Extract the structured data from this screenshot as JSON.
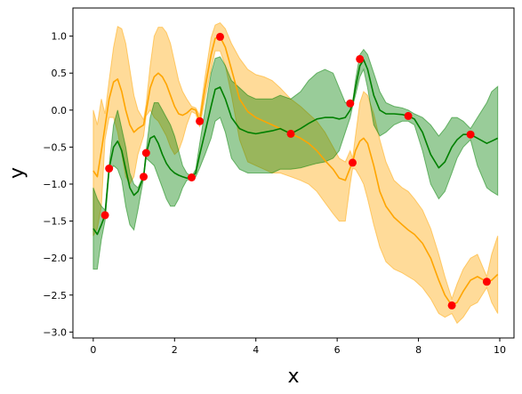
{
  "chart_data": {
    "type": "line",
    "title": "",
    "xlabel": "x",
    "ylabel": "y",
    "xlim": [
      -0.5,
      10.35
    ],
    "ylim": [
      -3.08,
      1.38
    ],
    "grid": false,
    "legend": "none",
    "x_ticks": [
      0,
      2,
      4,
      6,
      8,
      10
    ],
    "x_tick_labels": [
      "0",
      "2",
      "4",
      "6",
      "8",
      "10"
    ],
    "y_ticks": [
      1.0,
      0.5,
      0.0,
      -0.5,
      -1.0,
      -1.5,
      -2.0,
      -2.5,
      -3.0
    ],
    "y_tick_labels": [
      "1.0",
      "0.5",
      "0.0",
      "−0.5",
      "−1.0",
      "−1.5",
      "−2.0",
      "−2.5",
      "−3.0"
    ],
    "observations": {
      "color": "#ff0000",
      "x": [
        0.29,
        0.39,
        1.24,
        1.3,
        2.42,
        2.62,
        3.12,
        4.86,
        6.32,
        6.38,
        6.56,
        7.75,
        8.82,
        9.28,
        9.68
      ],
      "y": [
        -1.42,
        -0.79,
        -0.9,
        -0.58,
        -0.91,
        -0.15,
        0.99,
        -0.32,
        0.09,
        -0.71,
        0.69,
        -0.08,
        -2.64,
        -0.33,
        -2.32
      ]
    },
    "series": [
      {
        "color": "#ffa500",
        "band_color": "#ffa500",
        "band_opacity": 0.4,
        "x": [
          0.0,
          0.1,
          0.2,
          0.29,
          0.39,
          0.5,
          0.6,
          0.7,
          0.8,
          0.9,
          1.0,
          1.1,
          1.24,
          1.3,
          1.4,
          1.5,
          1.6,
          1.7,
          1.8,
          1.9,
          2.0,
          2.1,
          2.2,
          2.3,
          2.42,
          2.52,
          2.62,
          2.75,
          2.9,
          3.0,
          3.12,
          3.25,
          3.4,
          3.6,
          3.8,
          4.0,
          4.2,
          4.4,
          4.6,
          4.86,
          5.1,
          5.3,
          5.5,
          5.7,
          5.9,
          6.05,
          6.2,
          6.32,
          6.38,
          6.45,
          6.56,
          6.65,
          6.75,
          6.9,
          7.05,
          7.2,
          7.4,
          7.6,
          7.75,
          7.9,
          8.1,
          8.3,
          8.5,
          8.65,
          8.82,
          8.95,
          9.1,
          9.28,
          9.45,
          9.68,
          9.8,
          9.95
        ],
        "mean": [
          -0.82,
          -0.9,
          -0.55,
          -0.22,
          0.15,
          0.38,
          0.42,
          0.25,
          0.0,
          -0.2,
          -0.3,
          -0.25,
          -0.2,
          -0.02,
          0.3,
          0.45,
          0.5,
          0.45,
          0.35,
          0.2,
          0.05,
          -0.05,
          -0.07,
          -0.04,
          0.02,
          0.0,
          -0.15,
          0.3,
          0.75,
          0.97,
          0.99,
          0.85,
          0.55,
          0.15,
          -0.02,
          -0.1,
          -0.15,
          -0.2,
          -0.25,
          -0.32,
          -0.38,
          -0.45,
          -0.55,
          -0.68,
          -0.8,
          -0.92,
          -0.95,
          -0.78,
          -0.71,
          -0.55,
          -0.42,
          -0.38,
          -0.45,
          -0.75,
          -1.1,
          -1.3,
          -1.45,
          -1.55,
          -1.62,
          -1.68,
          -1.8,
          -2.0,
          -2.3,
          -2.5,
          -2.64,
          -2.6,
          -2.45,
          -2.3,
          -2.25,
          -2.32,
          -2.3,
          -2.22
        ],
        "upper": [
          0.0,
          -0.2,
          0.15,
          -0.05,
          0.4,
          0.85,
          1.13,
          1.1,
          0.9,
          0.55,
          0.2,
          0.0,
          -0.13,
          0.08,
          0.6,
          1.0,
          1.12,
          1.12,
          1.05,
          0.9,
          0.65,
          0.4,
          0.25,
          0.15,
          0.05,
          0.03,
          -0.07,
          0.45,
          0.98,
          1.15,
          1.18,
          1.1,
          0.9,
          0.7,
          0.55,
          0.48,
          0.45,
          0.4,
          0.3,
          0.15,
          0.05,
          -0.05,
          -0.15,
          -0.3,
          -0.5,
          -0.65,
          -0.7,
          -0.55,
          -0.65,
          -0.35,
          0.1,
          0.25,
          0.2,
          -0.05,
          -0.4,
          -0.7,
          -0.95,
          -1.05,
          -1.1,
          -1.2,
          -1.35,
          -1.6,
          -1.95,
          -2.25,
          -2.55,
          -2.35,
          -2.15,
          -2.0,
          -1.95,
          -2.25,
          -1.95,
          -1.7
        ],
        "lower": [
          -1.7,
          -1.6,
          -1.3,
          -0.4,
          -0.1,
          -0.1,
          -0.3,
          -0.6,
          -0.9,
          -1.0,
          -0.9,
          -0.6,
          -0.35,
          -0.08,
          0.0,
          -0.1,
          -0.15,
          -0.25,
          -0.35,
          -0.5,
          -0.6,
          -0.55,
          -0.4,
          -0.2,
          -0.02,
          -0.05,
          -0.23,
          0.15,
          0.55,
          0.8,
          0.8,
          0.6,
          0.2,
          -0.4,
          -0.7,
          -0.75,
          -0.8,
          -0.85,
          -0.85,
          -0.9,
          -0.95,
          -1.0,
          -1.1,
          -1.25,
          -1.4,
          -1.5,
          -1.5,
          -1.0,
          -0.79,
          -0.8,
          -0.9,
          -1.0,
          -1.2,
          -1.55,
          -1.85,
          -2.05,
          -2.15,
          -2.2,
          -2.25,
          -2.3,
          -2.4,
          -2.55,
          -2.75,
          -2.8,
          -2.75,
          -2.88,
          -2.8,
          -2.65,
          -2.6,
          -2.4,
          -2.6,
          -2.75
        ]
      },
      {
        "color": "#008000",
        "band_color": "#008000",
        "band_opacity": 0.4,
        "x": [
          0.0,
          0.1,
          0.2,
          0.29,
          0.39,
          0.5,
          0.6,
          0.7,
          0.8,
          0.9,
          1.0,
          1.1,
          1.24,
          1.3,
          1.4,
          1.5,
          1.6,
          1.7,
          1.8,
          1.9,
          2.0,
          2.1,
          2.2,
          2.3,
          2.42,
          2.52,
          2.62,
          2.75,
          2.9,
          3.0,
          3.12,
          3.25,
          3.4,
          3.6,
          3.8,
          4.0,
          4.2,
          4.4,
          4.6,
          4.86,
          5.1,
          5.3,
          5.5,
          5.7,
          5.9,
          6.05,
          6.2,
          6.32,
          6.38,
          6.45,
          6.56,
          6.65,
          6.75,
          6.9,
          7.05,
          7.2,
          7.4,
          7.6,
          7.75,
          7.9,
          8.1,
          8.3,
          8.5,
          8.65,
          8.82,
          8.95,
          9.1,
          9.28,
          9.45,
          9.68,
          9.8,
          9.95
        ],
        "mean": [
          -1.6,
          -1.68,
          -1.55,
          -1.42,
          -0.79,
          -0.5,
          -0.42,
          -0.55,
          -0.8,
          -1.05,
          -1.15,
          -1.1,
          -0.9,
          -0.6,
          -0.38,
          -0.35,
          -0.45,
          -0.6,
          -0.72,
          -0.8,
          -0.85,
          -0.88,
          -0.9,
          -0.92,
          -0.91,
          -0.85,
          -0.6,
          -0.3,
          0.05,
          0.28,
          0.31,
          0.15,
          -0.1,
          -0.25,
          -0.3,
          -0.32,
          -0.3,
          -0.28,
          -0.25,
          -0.32,
          -0.25,
          -0.18,
          -0.12,
          -0.1,
          -0.1,
          -0.12,
          -0.1,
          0.0,
          0.09,
          0.3,
          0.6,
          0.68,
          0.55,
          0.2,
          0.0,
          -0.05,
          -0.05,
          -0.06,
          -0.08,
          -0.12,
          -0.3,
          -0.6,
          -0.78,
          -0.7,
          -0.5,
          -0.4,
          -0.33,
          -0.33,
          -0.38,
          -0.45,
          -0.42,
          -0.38
        ],
        "upper": [
          -1.05,
          -1.2,
          -1.3,
          -1.35,
          -0.75,
          -0.2,
          0.0,
          -0.25,
          -0.5,
          -0.85,
          -1.0,
          -1.05,
          -0.88,
          -0.55,
          -0.1,
          0.1,
          0.1,
          0.0,
          -0.1,
          -0.2,
          -0.35,
          -0.55,
          -0.75,
          -0.85,
          -0.9,
          -0.8,
          -0.45,
          0.0,
          0.5,
          0.7,
          0.72,
          0.6,
          0.4,
          0.3,
          0.2,
          0.15,
          0.15,
          0.15,
          0.2,
          0.15,
          0.25,
          0.4,
          0.5,
          0.55,
          0.5,
          0.3,
          0.1,
          0.12,
          0.1,
          0.4,
          0.75,
          0.82,
          0.75,
          0.5,
          0.25,
          0.1,
          0.05,
          0.03,
          0.0,
          -0.05,
          -0.1,
          -0.2,
          -0.35,
          -0.25,
          -0.1,
          -0.1,
          -0.15,
          -0.25,
          -0.1,
          0.1,
          0.25,
          0.32
        ],
        "lower": [
          -2.15,
          -2.15,
          -1.75,
          -1.5,
          -0.85,
          -0.75,
          -0.8,
          -0.95,
          -1.3,
          -1.55,
          -1.62,
          -1.35,
          -0.92,
          -0.65,
          -0.7,
          -0.75,
          -0.9,
          -1.05,
          -1.2,
          -1.3,
          -1.3,
          -1.2,
          -1.05,
          -0.95,
          -0.92,
          -0.9,
          -0.78,
          -0.6,
          -0.38,
          -0.15,
          -0.1,
          -0.3,
          -0.65,
          -0.8,
          -0.85,
          -0.85,
          -0.85,
          -0.85,
          -0.8,
          -0.8,
          -0.78,
          -0.75,
          -0.72,
          -0.7,
          -0.65,
          -0.55,
          -0.3,
          -0.1,
          0.05,
          0.2,
          0.45,
          0.55,
          0.3,
          -0.2,
          -0.35,
          -0.3,
          -0.2,
          -0.15,
          -0.15,
          -0.2,
          -0.55,
          -1.0,
          -1.2,
          -1.1,
          -0.85,
          -0.65,
          -0.5,
          -0.4,
          -0.75,
          -1.05,
          -1.1,
          -1.15
        ]
      }
    ]
  }
}
